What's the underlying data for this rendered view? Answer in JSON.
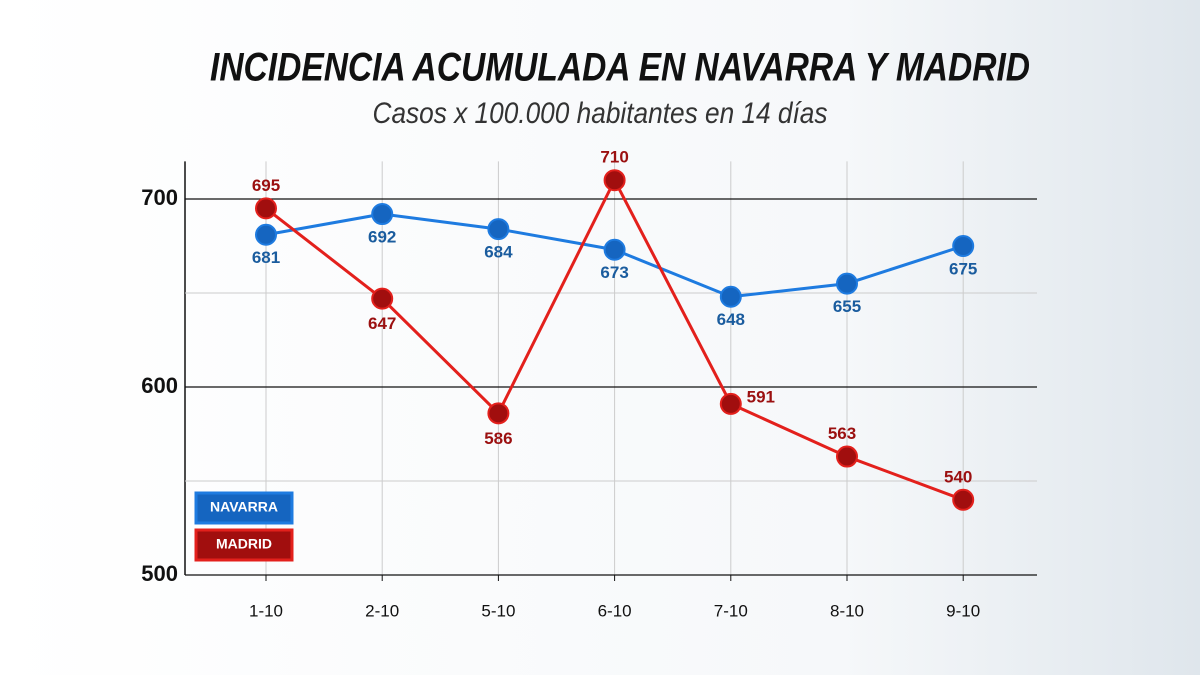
{
  "chart_data": {
    "type": "line",
    "title": "INCIDENCIA ACUMULADA EN NAVARRA Y MADRID",
    "subtitle": "Casos x 100.000 habitantes en 14 días",
    "categories": [
      "1-10",
      "2-10",
      "5-10",
      "6-10",
      "7-10",
      "8-10",
      "9-10"
    ],
    "series": [
      {
        "name": "NAVARRA",
        "color": "#1e7be0",
        "values": [
          681,
          692,
          684,
          673,
          648,
          655,
          675
        ]
      },
      {
        "name": "MADRID",
        "color": "#e3201c",
        "values": [
          695,
          647,
          586,
          710,
          591,
          563,
          540
        ]
      }
    ],
    "ylim": [
      500,
      720
    ],
    "yticks": [
      500,
      600,
      700
    ],
    "grid": true,
    "legend": "lower left"
  }
}
